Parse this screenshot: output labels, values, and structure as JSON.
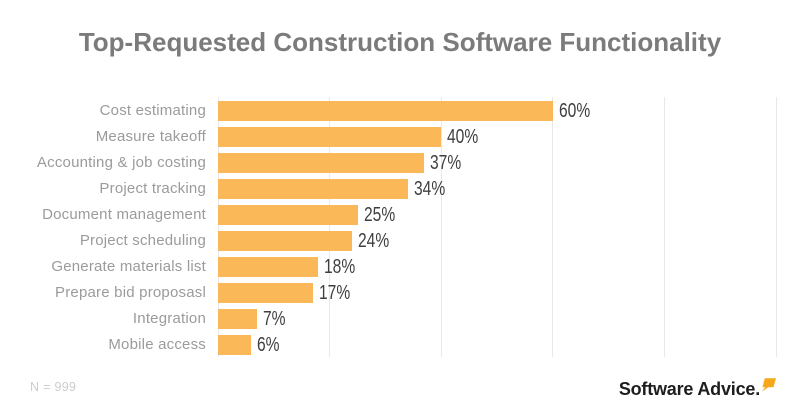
{
  "title": "Top-Requested Construction Software Functionality",
  "footer": {
    "sample_note": "N = 999",
    "brand_text": "Software Advice.",
    "brand_mark_icon": "speech-bubble-icon"
  },
  "colors": {
    "bar": "#FBB858",
    "grid": "#E8E8E8",
    "title": "#7B7B7B",
    "category_label": "#9B9B9B",
    "value_label": "#3F3F3F",
    "note": "#CCCCCC",
    "brand_text": "#1D1D1D",
    "brand_mark": "#F6A81C"
  },
  "chart_data": {
    "type": "bar",
    "orientation": "horizontal",
    "title": "Top-Requested Construction Software Functionality",
    "categories": [
      "Cost estimating",
      "Measure takeoff",
      "Accounting & job costing",
      "Project tracking",
      "Document management",
      "Project scheduling",
      "Generate materials list",
      "Prepare bid proposasl",
      "Integration",
      "Mobile access"
    ],
    "values": [
      60,
      40,
      37,
      34,
      25,
      24,
      18,
      17,
      7,
      6
    ],
    "value_labels": [
      "60%",
      "40%",
      "37%",
      "34%",
      "25%",
      "24%",
      "18%",
      "17%",
      "7%",
      "6%"
    ],
    "xlabel": "",
    "ylabel": "",
    "xlim": [
      0,
      100
    ],
    "gridline_interval": 20,
    "grid": true,
    "legend": false,
    "axis_tick_labels_visible": false
  }
}
